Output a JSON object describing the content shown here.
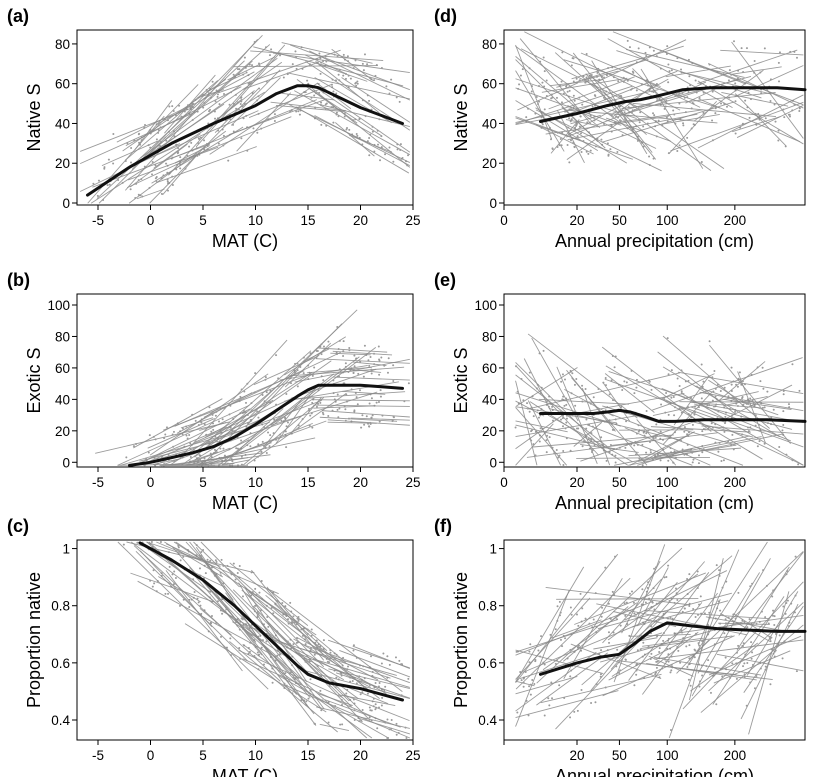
{
  "chart_data": [
    {
      "id": "a",
      "type": "line",
      "panel_label": "(a)",
      "xlabel": "MAT (C)",
      "ylabel": "Native S",
      "x_scale": "linear",
      "xlim": [
        -7,
        25
      ],
      "ylim": [
        -1,
        87
      ],
      "xticks": [
        -5,
        0,
        5,
        10,
        15,
        20,
        25
      ],
      "yticks": [
        0,
        20,
        40,
        60,
        80
      ],
      "series": [
        {
          "role": "overall-fit",
          "color": "#111111",
          "x": [
            -6,
            -2,
            2,
            6,
            10,
            12,
            14,
            15,
            16,
            18,
            20,
            22,
            24
          ],
          "y": [
            4,
            18,
            30,
            40,
            49,
            55,
            59,
            59,
            58,
            53,
            48,
            44,
            40
          ]
        }
      ],
      "background": {
        "color": "#8a8a8a",
        "note": "many per-site regression lines and raw data points"
      }
    },
    {
      "id": "b",
      "type": "line",
      "panel_label": "(b)",
      "xlabel": "MAT (C)",
      "ylabel": "Exotic S",
      "x_scale": "linear",
      "xlim": [
        -7,
        25
      ],
      "ylim": [
        -3,
        107
      ],
      "xticks": [
        -5,
        0,
        5,
        10,
        15,
        20,
        25
      ],
      "yticks": [
        0,
        20,
        40,
        60,
        80,
        100
      ],
      "series": [
        {
          "role": "overall-fit",
          "color": "#111111",
          "x": [
            -2,
            0,
            2,
            4,
            6,
            8,
            10,
            12,
            14,
            15,
            16,
            18,
            20,
            22,
            24
          ],
          "y": [
            -2,
            0,
            3,
            6,
            10,
            16,
            24,
            33,
            42,
            46,
            49,
            49,
            49,
            48,
            47
          ]
        }
      ],
      "background": {
        "color": "#8a8a8a",
        "note": "many per-site regression lines and raw data points"
      }
    },
    {
      "id": "c",
      "type": "line",
      "panel_label": "(c)",
      "xlabel": "MAT (C)",
      "ylabel": "Proportion native",
      "x_scale": "linear",
      "xlim": [
        -7,
        25
      ],
      "ylim": [
        0.33,
        1.03
      ],
      "xticks": [
        -5,
        0,
        5,
        10,
        15,
        20,
        25
      ],
      "yticks": [
        0.4,
        0.6,
        0.8,
        1
      ],
      "ytick_labels": [
        "0.4",
        "0.6",
        "0.8",
        "1"
      ],
      "series": [
        {
          "role": "overall-fit",
          "color": "#111111",
          "x": [
            -1,
            2,
            5,
            8,
            10,
            12,
            14,
            15,
            17,
            20,
            22,
            24
          ],
          "y": [
            1.02,
            0.96,
            0.89,
            0.8,
            0.73,
            0.66,
            0.59,
            0.56,
            0.53,
            0.51,
            0.49,
            0.47
          ]
        }
      ],
      "background": {
        "color": "#8a8a8a",
        "note": "many per-site regression lines and raw data points"
      }
    },
    {
      "id": "d",
      "type": "line",
      "panel_label": "(d)",
      "xlabel": "Annual precipitation (cm)",
      "ylabel": "Native S",
      "x_scale": "sqrt",
      "xlim": [
        0,
        340
      ],
      "ylim": [
        -1,
        87
      ],
      "xticks": [
        0,
        20,
        50,
        100,
        200
      ],
      "yticks": [
        0,
        20,
        40,
        60,
        80
      ],
      "series": [
        {
          "role": "overall-fit",
          "color": "#111111",
          "x": [
            5,
            20,
            40,
            55,
            70,
            90,
            120,
            160,
            220,
            280,
            340
          ],
          "y": [
            41,
            45,
            49,
            51,
            52,
            54,
            57,
            58,
            58,
            58,
            57
          ]
        }
      ],
      "background": {
        "color": "#8a8a8a",
        "note": "many per-site regression lines and raw data points"
      }
    },
    {
      "id": "e",
      "type": "line",
      "panel_label": "(e)",
      "xlabel": "Annual precipitation (cm)",
      "ylabel": "Exotic S",
      "x_scale": "sqrt",
      "xlim": [
        0,
        340
      ],
      "ylim": [
        -3,
        107
      ],
      "xticks": [
        0,
        20,
        50,
        100,
        200
      ],
      "yticks": [
        0,
        20,
        40,
        60,
        80,
        100
      ],
      "series": [
        {
          "role": "overall-fit",
          "color": "#111111",
          "x": [
            5,
            20,
            30,
            40,
            50,
            60,
            75,
            90,
            110,
            150,
            200,
            260,
            340
          ],
          "y": [
            31,
            31,
            31,
            32,
            33,
            32,
            29,
            26,
            26,
            27,
            27,
            27,
            26
          ]
        }
      ],
      "background": {
        "color": "#8a8a8a",
        "note": "many per-site regression lines and raw data points"
      }
    },
    {
      "id": "f",
      "type": "line",
      "panel_label": "(f)",
      "xlabel": "Annual precipitation (cm)",
      "ylabel": "Proportion native",
      "x_scale": "sqrt",
      "xlim": [
        0,
        340
      ],
      "ylim": [
        0.33,
        1.03
      ],
      "xticks": [
        0,
        20,
        50,
        100,
        200
      ],
      "xtick_labels_shown": [
        "20",
        "50",
        "100",
        "200"
      ],
      "yticks": [
        0.4,
        0.6,
        0.8,
        1
      ],
      "ytick_labels": [
        "0.4",
        "0.6",
        "0.8",
        "1"
      ],
      "series": [
        {
          "role": "overall-fit",
          "color": "#111111",
          "x": [
            5,
            20,
            35,
            50,
            65,
            80,
            100,
            130,
            170,
            220,
            280,
            340
          ],
          "y": [
            0.56,
            0.6,
            0.62,
            0.63,
            0.67,
            0.71,
            0.74,
            0.73,
            0.72,
            0.715,
            0.71,
            0.71
          ]
        }
      ],
      "background": {
        "color": "#8a8a8a",
        "note": "many per-site regression lines and raw data points"
      }
    }
  ]
}
